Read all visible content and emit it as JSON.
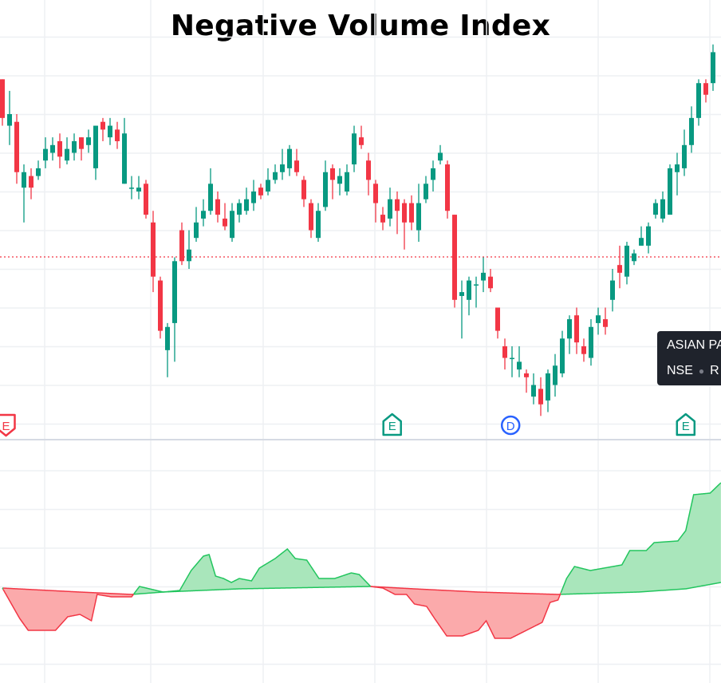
{
  "chart_data": [
    {
      "type": "candlestick",
      "title": "Negative Volume Index",
      "colors": {
        "up": "#089981",
        "down": "#f23645",
        "price_line": "#f23645",
        "grid": "#eef0f3"
      },
      "ylim": [
        0,
        100
      ],
      "price_line_value": 43.1,
      "grid": true,
      "candles": [
        [
          89,
          89,
          77,
          79
        ],
        [
          77,
          86,
          72,
          80
        ],
        [
          78,
          80,
          62,
          65
        ],
        [
          61,
          67,
          52,
          65
        ],
        [
          64,
          66,
          58,
          61
        ],
        [
          64,
          68,
          63,
          66
        ],
        [
          68,
          74,
          66,
          71
        ],
        [
          70,
          74,
          68,
          72
        ],
        [
          73,
          75,
          66,
          69
        ],
        [
          68,
          74,
          67,
          71
        ],
        [
          70,
          75,
          68,
          73
        ],
        [
          74,
          74,
          68,
          71
        ],
        [
          72,
          76,
          70,
          74
        ],
        [
          66,
          77,
          63,
          77
        ],
        [
          78,
          79,
          73,
          76
        ],
        [
          74,
          79,
          72,
          77
        ],
        [
          76,
          78,
          71,
          73
        ],
        [
          62,
          79,
          62,
          75
        ],
        [
          61,
          64,
          58,
          61
        ],
        [
          60,
          64,
          58,
          61
        ],
        [
          62,
          63,
          53,
          54
        ],
        [
          52,
          55,
          34,
          38
        ],
        [
          37,
          38,
          22,
          24
        ],
        [
          19,
          26,
          12,
          25
        ],
        [
          26,
          43,
          16,
          42
        ],
        [
          50,
          52,
          41,
          42
        ],
        [
          42,
          50,
          40,
          45
        ],
        [
          48,
          56,
          47,
          52
        ],
        [
          53,
          58,
          51,
          55
        ],
        [
          55,
          66,
          54,
          62
        ],
        [
          58,
          60,
          52,
          54
        ],
        [
          53,
          57,
          50,
          51
        ],
        [
          48,
          57,
          47,
          55
        ],
        [
          54,
          58,
          52,
          57
        ],
        [
          55,
          61,
          54,
          58
        ],
        [
          57,
          63,
          55,
          60
        ],
        [
          61,
          62,
          58,
          59
        ],
        [
          60,
          66,
          59,
          63
        ],
        [
          63,
          67,
          62,
          65
        ],
        [
          65,
          71,
          63,
          67
        ],
        [
          66,
          72,
          64,
          71
        ],
        [
          68,
          71,
          64,
          65
        ],
        [
          63,
          64,
          56,
          58
        ],
        [
          57,
          58,
          48,
          50
        ],
        [
          48,
          57,
          47,
          55
        ],
        [
          56,
          68,
          55,
          65
        ],
        [
          66,
          67,
          58,
          63
        ],
        [
          62,
          66,
          59,
          64
        ],
        [
          60,
          67,
          59,
          65
        ],
        [
          67,
          77,
          65,
          75
        ],
        [
          74,
          77,
          71,
          72
        ],
        [
          68,
          70,
          59,
          63
        ],
        [
          62,
          63,
          52,
          57
        ],
        [
          54,
          56,
          50,
          52
        ],
        [
          53,
          61,
          51,
          58
        ],
        [
          58,
          60,
          49,
          55
        ],
        [
          57,
          58,
          45,
          52
        ],
        [
          57,
          59,
          50,
          52
        ],
        [
          50,
          62,
          47,
          57
        ],
        [
          58,
          64,
          57,
          62
        ],
        [
          63,
          68,
          60,
          66
        ],
        [
          68,
          72,
          67,
          70
        ],
        [
          67,
          68,
          53,
          55
        ],
        [
          54,
          54,
          30,
          32
        ],
        [
          33,
          37,
          22,
          34
        ],
        [
          32,
          38,
          28,
          37
        ],
        [
          36,
          38,
          30,
          36
        ],
        [
          37,
          43,
          34,
          39
        ],
        [
          38,
          40,
          34,
          35
        ],
        [
          30,
          30,
          22,
          24
        ],
        [
          20,
          22,
          14,
          17
        ],
        [
          17,
          20,
          12,
          17
        ],
        [
          14,
          20,
          12,
          16
        ],
        [
          13,
          14,
          8,
          12
        ],
        [
          7,
          13,
          5,
          10
        ],
        [
          9,
          12,
          2,
          5
        ],
        [
          6,
          14,
          3,
          13
        ],
        [
          10,
          18,
          7,
          15
        ],
        [
          13,
          24,
          12,
          22
        ],
        [
          22,
          28,
          18,
          27
        ],
        [
          28,
          30,
          18,
          21
        ],
        [
          20,
          22,
          16,
          18
        ],
        [
          17,
          27,
          15,
          25
        ],
        [
          26,
          30,
          23,
          28
        ],
        [
          27,
          30,
          23,
          25
        ],
        [
          32,
          40,
          29,
          37
        ],
        [
          41,
          46,
          35,
          39
        ],
        [
          38,
          47,
          36,
          46
        ],
        [
          42,
          45,
          41,
          44
        ],
        [
          46,
          51,
          46,
          48
        ],
        [
          46,
          52,
          44,
          51
        ],
        [
          54,
          58,
          53,
          57
        ],
        [
          53,
          60,
          52,
          58
        ],
        [
          54,
          67,
          54,
          66
        ],
        [
          65,
          70,
          59,
          67
        ],
        [
          66,
          76,
          64,
          72
        ],
        [
          72,
          82,
          70,
          79
        ],
        [
          79,
          89,
          77,
          88
        ],
        [
          88,
          89,
          83,
          85
        ],
        [
          88,
          98,
          86,
          96
        ]
      ],
      "events": [
        {
          "label": "E",
          "bar": 0.5,
          "color": "#f23645",
          "direction": "down"
        },
        {
          "label": "E",
          "bar": 54.3,
          "color": "#089981",
          "direction": "up"
        },
        {
          "label": "D",
          "bar": 70.8,
          "color": "#2962ff",
          "direction": "circle"
        },
        {
          "label": "E",
          "bar": 95.2,
          "color": "#089981",
          "direction": "up"
        }
      ]
    },
    {
      "type": "area",
      "colors": {
        "above": "#22c55e",
        "above_fill": "#a9e6bb",
        "below": "#f23645",
        "below_fill": "#fbaaab"
      },
      "ylim": [
        -55,
        250
      ],
      "nvi": [
        [
          0,
          63
        ],
        [
          2.4,
          25
        ],
        [
          3.6,
          10
        ],
        [
          7.4,
          10
        ],
        [
          9.1,
          27
        ],
        [
          10.8,
          30
        ],
        [
          12.4,
          22
        ],
        [
          13.2,
          55
        ],
        [
          15.2,
          52
        ],
        [
          18,
          52
        ],
        [
          19.1,
          65
        ],
        [
          22.4,
          58
        ],
        [
          24.7,
          60
        ],
        [
          26.3,
          85
        ],
        [
          28,
          103
        ],
        [
          28.8,
          105
        ],
        [
          29.7,
          78
        ],
        [
          30.8,
          75
        ],
        [
          31.9,
          70
        ],
        [
          33,
          75
        ],
        [
          34.7,
          72
        ],
        [
          35.8,
          88
        ],
        [
          38,
          100
        ],
        [
          39.7,
          112
        ],
        [
          40.8,
          100
        ],
        [
          42.4,
          98
        ],
        [
          44.1,
          75
        ],
        [
          46.3,
          75
        ],
        [
          48.6,
          82
        ],
        [
          49.7,
          80
        ],
        [
          51.3,
          65
        ],
        [
          53,
          63
        ],
        [
          54.7,
          55
        ],
        [
          56.3,
          55
        ],
        [
          57.4,
          43
        ],
        [
          59.1,
          40
        ],
        [
          60.2,
          25
        ],
        [
          61.9,
          3
        ],
        [
          64.1,
          3
        ],
        [
          66.3,
          10
        ],
        [
          67.4,
          22
        ],
        [
          68.6,
          0
        ],
        [
          70.8,
          0
        ],
        [
          73,
          10
        ],
        [
          75.2,
          20
        ],
        [
          76.3,
          45
        ],
        [
          77.4,
          48
        ],
        [
          78.6,
          75
        ],
        [
          79.7,
          90
        ],
        [
          81.9,
          85
        ],
        [
          86.3,
          92
        ],
        [
          87.4,
          110
        ],
        [
          89.7,
          110
        ],
        [
          90.8,
          120
        ],
        [
          94.1,
          122
        ],
        [
          95.2,
          135
        ],
        [
          96.3,
          180
        ],
        [
          98.6,
          182
        ],
        [
          100.1,
          195
        ]
      ],
      "signal": [
        [
          0,
          63
        ],
        [
          10.8,
          58
        ],
        [
          18,
          55
        ],
        [
          22.4,
          58
        ],
        [
          33,
          62
        ],
        [
          51.3,
          65
        ],
        [
          57.4,
          62
        ],
        [
          66.3,
          58
        ],
        [
          77.4,
          55
        ],
        [
          88.6,
          58
        ],
        [
          95.2,
          62
        ],
        [
          100.1,
          70
        ]
      ]
    }
  ],
  "tooltip": {
    "line1": "ASIAN PA",
    "exchange": "NSE",
    "line2_rest": "R"
  }
}
